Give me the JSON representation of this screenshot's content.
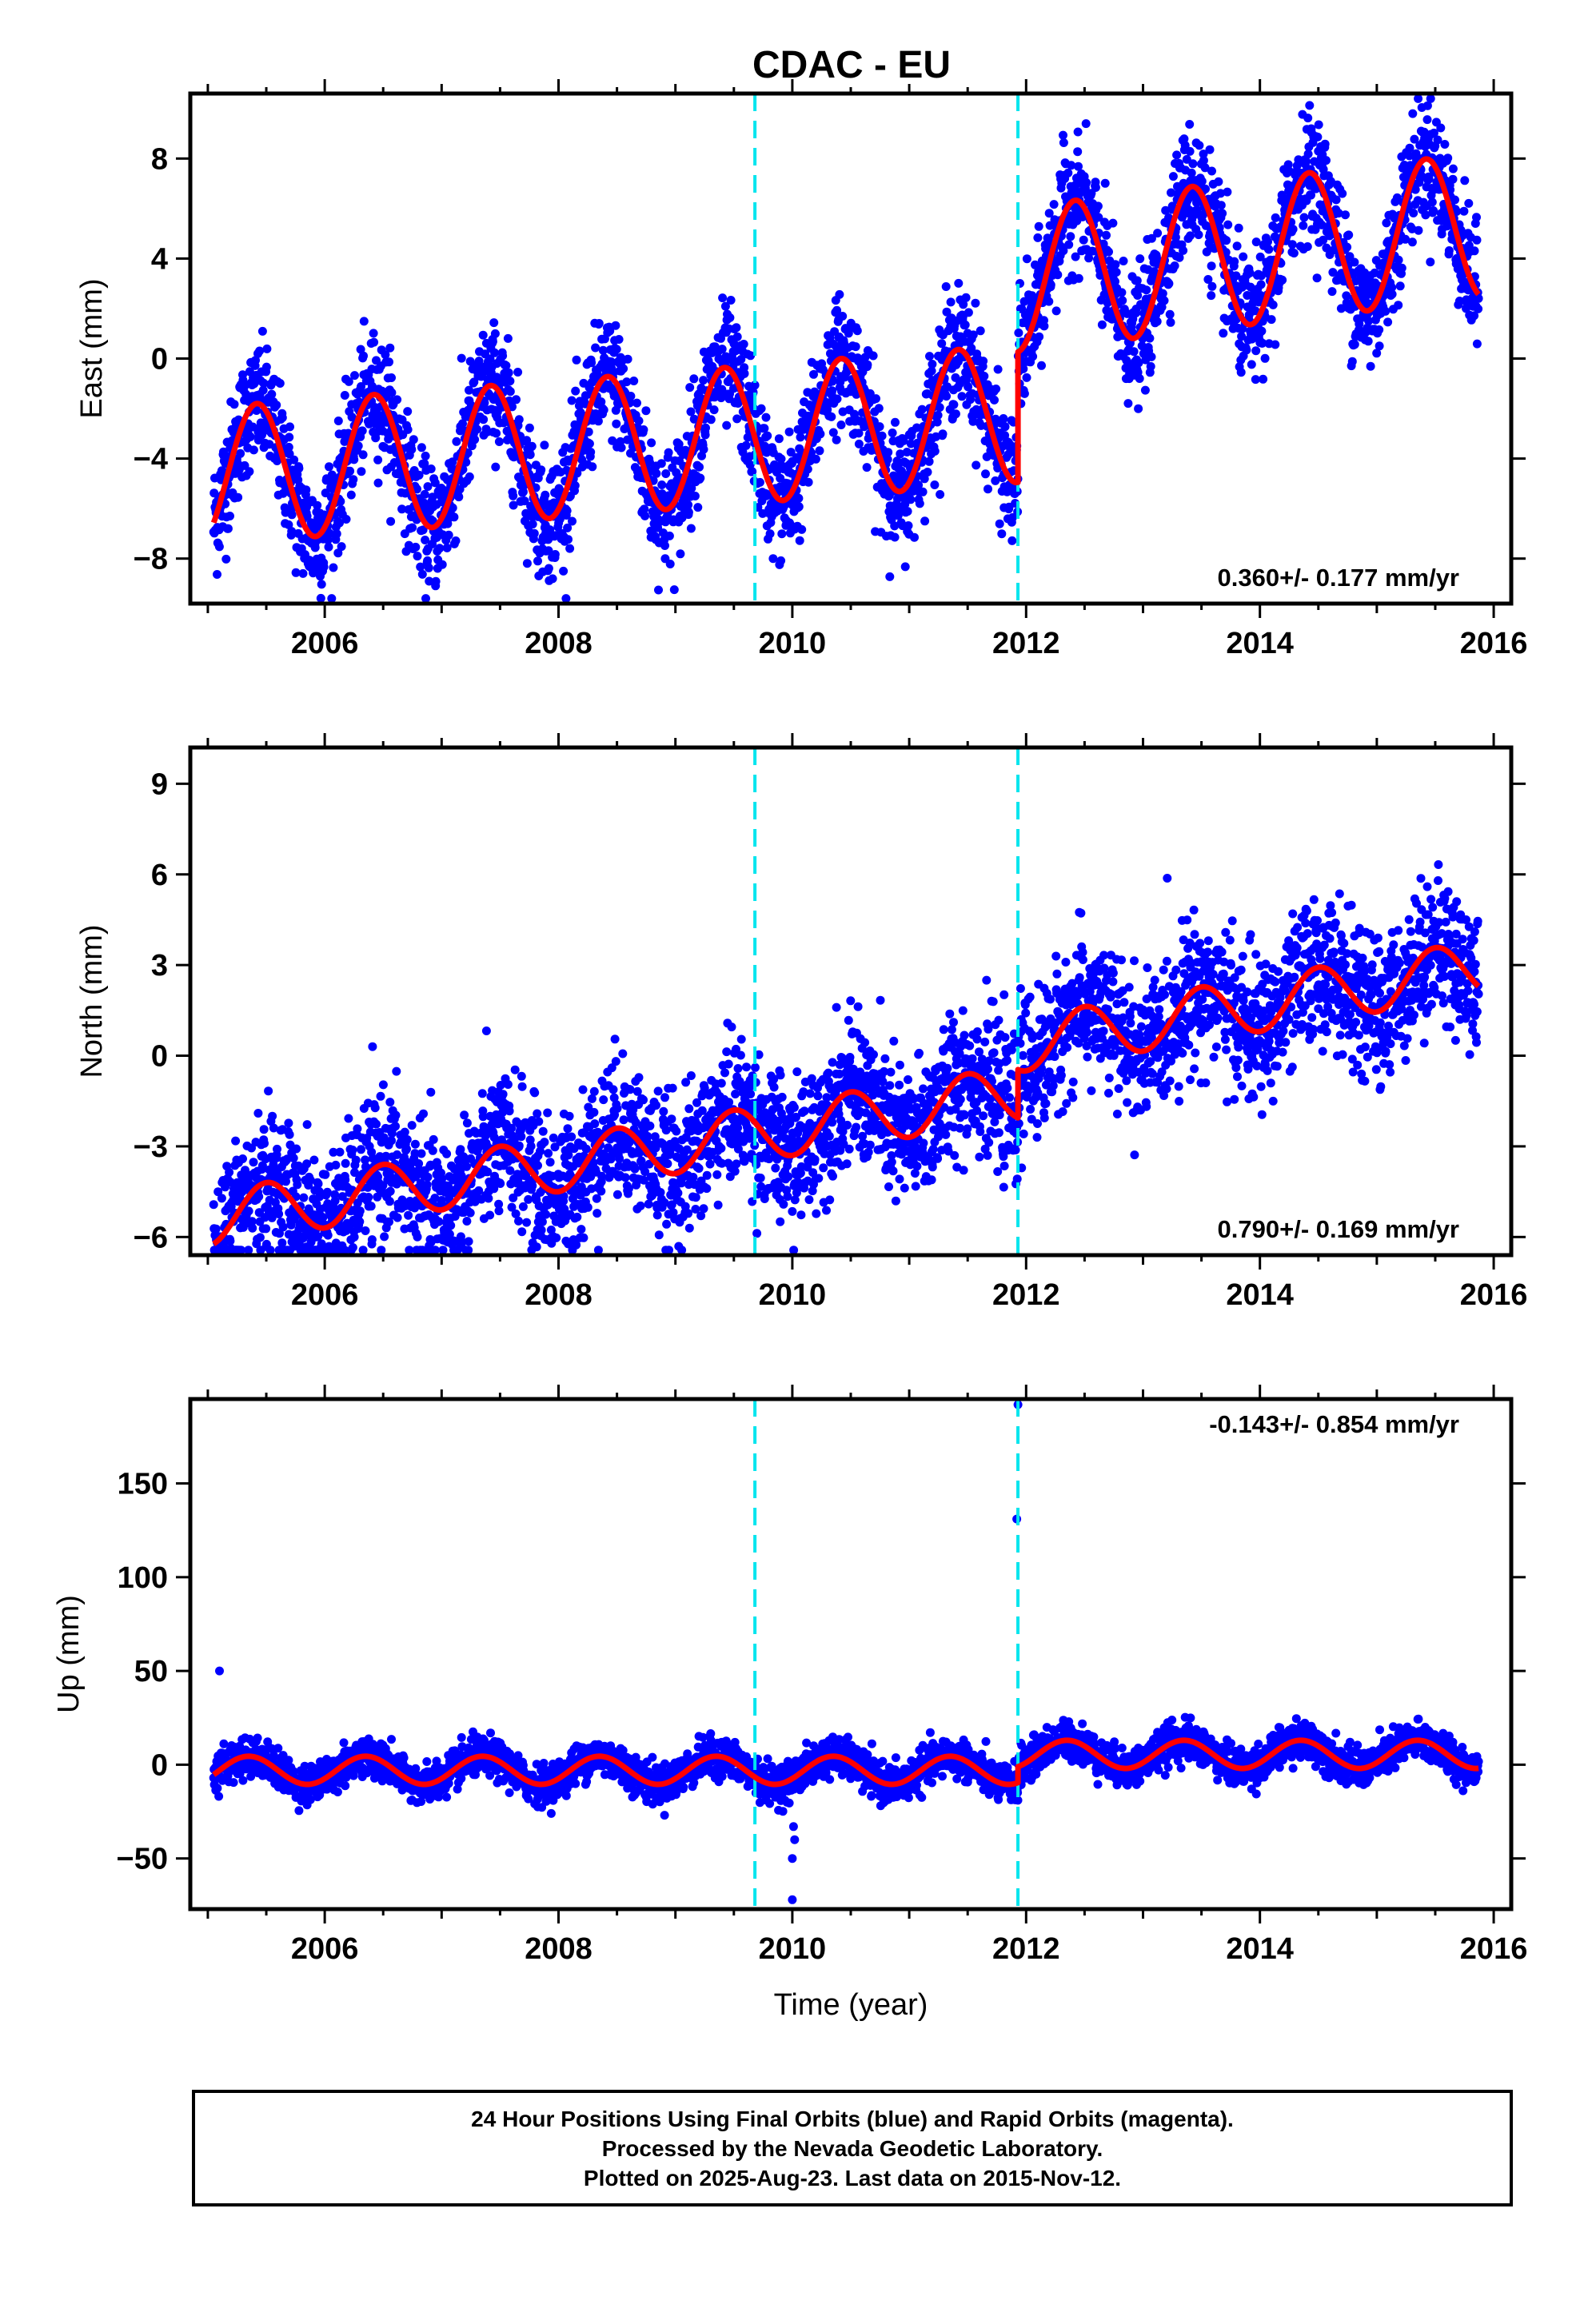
{
  "title": "CDAC - EU",
  "footer": {
    "line1": "24 Hour Positions Using Final Orbits (blue) and Rapid Orbits (magenta).",
    "line2": "Processed by the Nevada Geodetic Laboratory.",
    "line3": "Plotted on 2025-Aug-23. Last data on 2015-Nov-12."
  },
  "colors": {
    "points": "#0000ff",
    "model": "#ff0000",
    "steps": "#00e5ee",
    "axes": "#000000"
  },
  "chart_data": [
    {
      "type": "scatter",
      "panel": "east",
      "ylabel": "East (mm)",
      "xlabel": "",
      "xlim": [
        2004.85,
        2016.15
      ],
      "ylim": [
        -9.8,
        10.6
      ],
      "xticks": [
        2006,
        2008,
        2010,
        2012,
        2014,
        2016
      ],
      "yticks": [
        -8,
        -4,
        0,
        4,
        8
      ],
      "grid": false,
      "rate_label": "0.360+/- 0.177 mm/yr",
      "rate_label_position": "bottom-right",
      "step_epochs": [
        2009.68,
        2011.93
      ],
      "data_range": [
        2005.05,
        2015.87
      ],
      "model_segments": [
        {
          "t0": 2005.05,
          "t1": 2011.93,
          "offset": -2.9,
          "rate": 0.36,
          "amplitude": 2.75,
          "phase": 2005.42
        },
        {
          "t0": 2011.93,
          "t1": 2015.87,
          "offset": 2.1,
          "rate": 0.55,
          "amplitude": 2.9,
          "phase": 2005.42
        }
      ],
      "scatter_sigma": 1.2,
      "series": [
        {
          "name": "Final Orbits",
          "color": "#0000ff",
          "marker": "dot"
        },
        {
          "name": "Model",
          "color": "#ff0000",
          "marker": "line"
        }
      ]
    },
    {
      "type": "scatter",
      "panel": "north",
      "ylabel": "North (mm)",
      "xlabel": "",
      "xlim": [
        2004.85,
        2016.15
      ],
      "ylim": [
        -6.6,
        10.2
      ],
      "xticks": [
        2006,
        2008,
        2010,
        2012,
        2014,
        2016
      ],
      "yticks": [
        -6,
        -3,
        0,
        3,
        6,
        9
      ],
      "grid": false,
      "rate_label": "0.790+/- 0.169 mm/yr",
      "rate_label_position": "bottom-right",
      "step_epochs": [
        2009.68,
        2011.93
      ],
      "data_range": [
        2005.05,
        2015.87
      ],
      "model_segments": [
        {
          "t0": 2005.05,
          "t1": 2011.93,
          "offset": -2.4,
          "rate": 0.6,
          "amplitude": 0.9,
          "phase": 2005.5
        },
        {
          "t0": 2011.93,
          "t1": 2015.87,
          "offset": -0.9,
          "rate": 0.65,
          "amplitude": 0.9,
          "phase": 2005.5
        }
      ],
      "scatter_sigma": 1.15,
      "series": [
        {
          "name": "Final Orbits",
          "color": "#0000ff",
          "marker": "dot"
        },
        {
          "name": "Model",
          "color": "#ff0000",
          "marker": "line"
        }
      ]
    },
    {
      "type": "scatter",
      "panel": "up",
      "ylabel": "Up (mm)",
      "xlabel": "Time (year)",
      "xlim": [
        2004.85,
        2016.15
      ],
      "ylim": [
        -77,
        195
      ],
      "xticks": [
        2006,
        2008,
        2010,
        2012,
        2014,
        2016
      ],
      "yticks": [
        -50,
        0,
        50,
        100,
        150
      ],
      "grid": false,
      "rate_label": "-0.143+/- 0.854 mm/yr",
      "rate_label_position": "top-right",
      "step_epochs": [
        2009.68,
        2011.93
      ],
      "data_range": [
        2005.05,
        2015.87
      ],
      "model_segments": [
        {
          "t0": 2005.05,
          "t1": 2011.93,
          "offset": -3.0,
          "rate": 0.0,
          "amplitude": 7.5,
          "phase": 2005.35
        },
        {
          "t0": 2011.93,
          "t1": 2015.87,
          "offset": 5.5,
          "rate": 0.0,
          "amplitude": 7.5,
          "phase": 2005.35
        }
      ],
      "scatter_sigma": 5.0,
      "outliers": [
        {
          "x": 2005.1,
          "y": 50
        },
        {
          "x": 2011.92,
          "y": 131
        },
        {
          "x": 2011.93,
          "y": 192
        },
        {
          "x": 2010.0,
          "y": -72
        },
        {
          "x": 2010.0,
          "y": -50
        },
        {
          "x": 2010.02,
          "y": -40
        },
        {
          "x": 2010.01,
          "y": -33
        }
      ],
      "series": [
        {
          "name": "Final Orbits",
          "color": "#0000ff",
          "marker": "dot"
        },
        {
          "name": "Model",
          "color": "#ff0000",
          "marker": "line"
        }
      ]
    }
  ]
}
